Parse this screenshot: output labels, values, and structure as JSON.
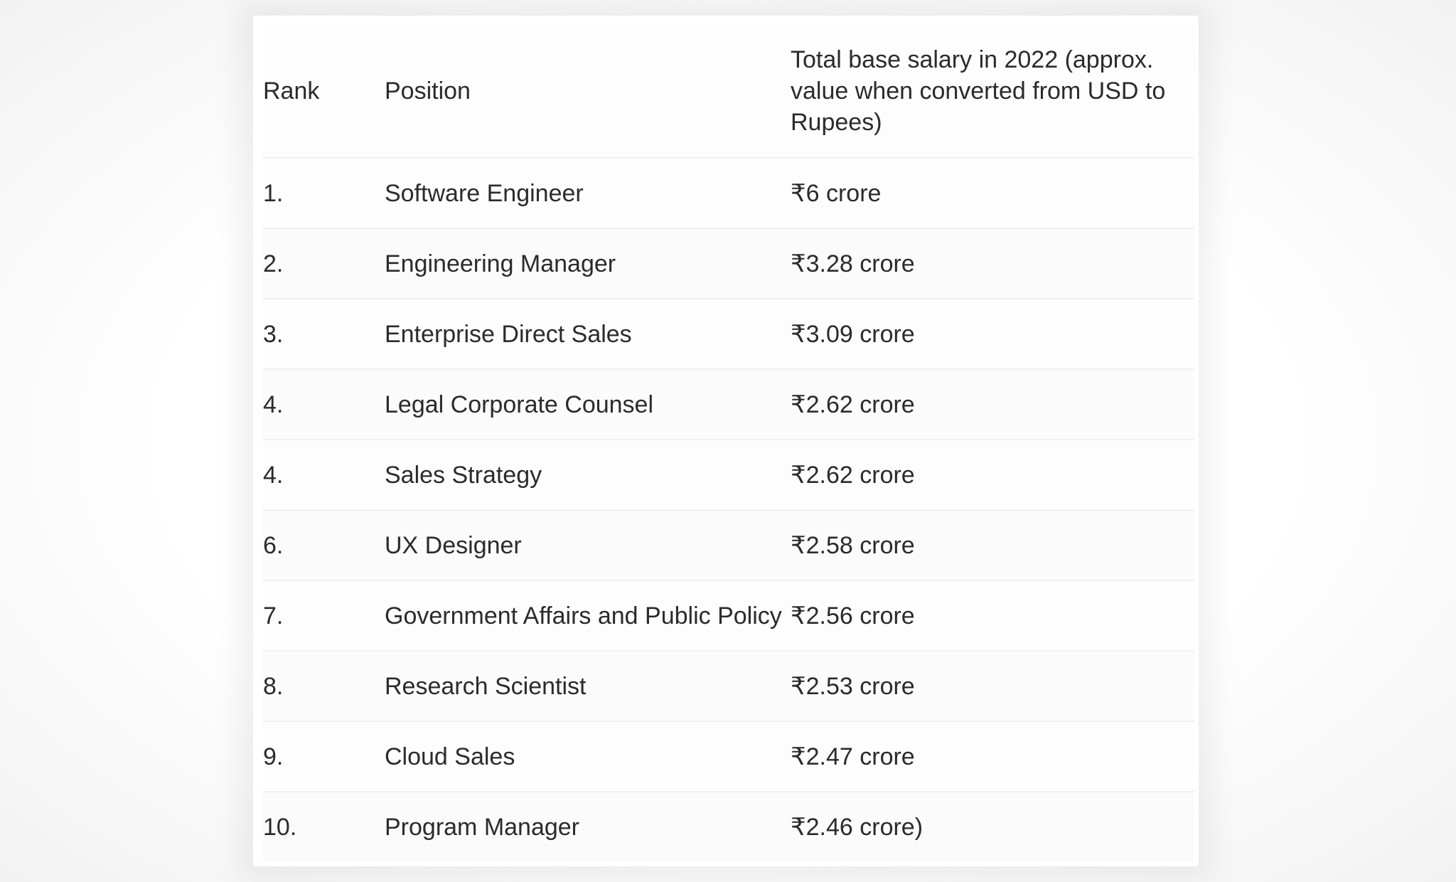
{
  "table": {
    "headers": {
      "rank": "Rank",
      "position": "Position",
      "salary": "Total base salary in 2022 (approx. value when converted from USD to Rupees)"
    },
    "rows": [
      {
        "rank": "1.",
        "position": "Software Engineer",
        "salary": "₹6 crore"
      },
      {
        "rank": "2.",
        "position": "Engineering Manager",
        "salary": "₹3.28 crore"
      },
      {
        "rank": "3.",
        "position": "Enterprise Direct Sales",
        "salary": "₹3.09 crore"
      },
      {
        "rank": "4.",
        "position": "Legal Corporate Counsel",
        "salary": "₹2.62 crore"
      },
      {
        "rank": "4.",
        "position": "Sales Strategy",
        "salary": "₹2.62 crore"
      },
      {
        "rank": "6.",
        "position": "UX Designer",
        "salary": "₹2.58 crore"
      },
      {
        "rank": "7.",
        "position": "Government Affairs and Public Policy",
        "salary": "₹2.56 crore"
      },
      {
        "rank": "8.",
        "position": "Research Scientist",
        "salary": "₹2.53 crore"
      },
      {
        "rank": "9.",
        "position": "Cloud Sales",
        "salary": "₹2.47 crore"
      },
      {
        "rank": "10.",
        "position": "Program Manager",
        "salary": "₹2.46 crore)"
      }
    ]
  }
}
